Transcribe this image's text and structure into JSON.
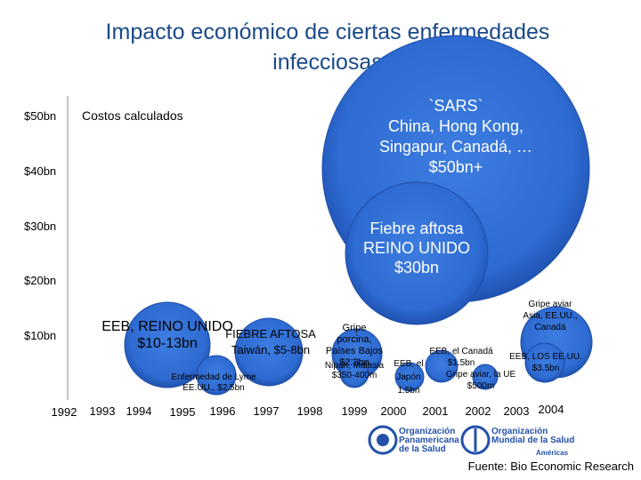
{
  "title": [
    "Impacto económico de ciertas enfermedades",
    "infecciosas"
  ],
  "legend_label": "Costos calculados",
  "y_labels": [
    "$50bn",
    "$40bn",
    "$30bn",
    "$20bn",
    "$10bn"
  ],
  "x_labels": [
    "1992",
    "1993",
    "1994",
    "1995",
    "1996",
    "1997",
    "1998",
    "1999",
    "2000",
    "2001",
    "2002",
    "2003",
    "2004"
  ],
  "bubbles": [
    {
      "lines": [
        "`SARS`",
        "China, Hong Kong,",
        "Singapur, Canadá, …",
        "$50bn+"
      ]
    },
    {
      "lines": [
        "Fiebre aftosa",
        "REINO UNIDO",
        "$30bn"
      ]
    },
    {
      "lines": [
        "Gripe aviar",
        "Asia,  EE.UU.,",
        "Canadá"
      ]
    },
    {
      "lines": [
        "EEB, REINO UNIDO",
        "$10-13bn"
      ]
    },
    {
      "lines": [
        "FIEBRE AFTOSA",
        "Taiwán, $5-8bn"
      ]
    },
    {
      "lines": [
        "Enfermedad de Lyme",
        "EE.UU., $2.5bn"
      ]
    },
    {
      "lines": [
        "Gripe",
        "porcina,",
        "Países Bajos",
        "$2.3bn"
      ]
    },
    {
      "lines": [
        "Nipah, Malasia",
        "$350-400m"
      ]
    },
    {
      "lines": [
        "EEB, el Canadá",
        "$1.5bn"
      ]
    },
    {
      "lines": [
        "EEB, el",
        "Japón",
        "1.5bn"
      ]
    },
    {
      "lines": [
        "Gripe aviar, la UE",
        "$500m"
      ]
    },
    {
      "lines": [
        "EEB, LOS EE.UU.",
        "$3.5bn"
      ]
    }
  ],
  "logos": [
    {
      "lines": [
        "Organización",
        "Panamericana",
        "de la Salud"
      ]
    },
    {
      "lines": [
        "Organización",
        "Mundial de la Salud"
      ],
      "sub": "Américas"
    }
  ],
  "source": "Fuente: Bio Economic Research"
}
